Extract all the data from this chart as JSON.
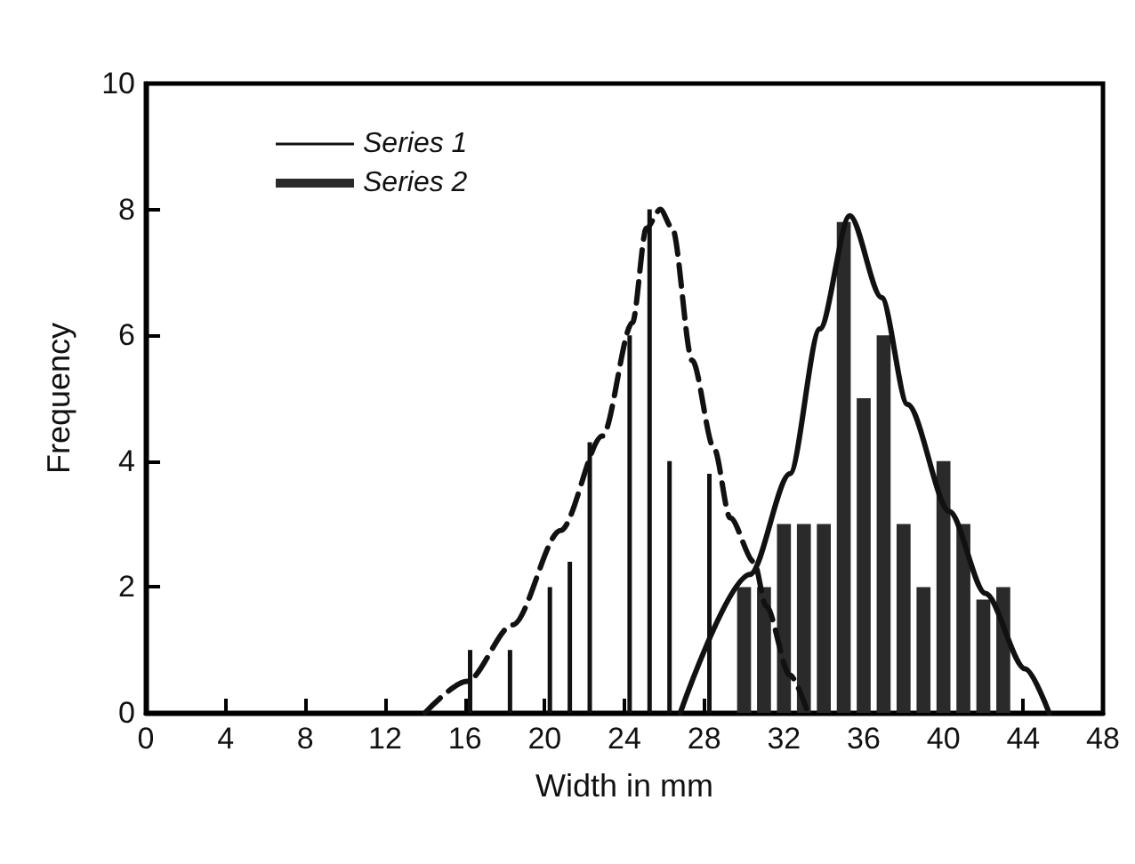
{
  "chart_data": {
    "type": "bar",
    "xlabel": "Width in mm",
    "ylabel": "Frequency",
    "xlim": [
      0,
      48
    ],
    "xticks": [
      0,
      4,
      8,
      12,
      16,
      20,
      24,
      28,
      32,
      36,
      40,
      44,
      48
    ],
    "ylim": [
      0,
      10
    ],
    "yticks": [
      0,
      2,
      4,
      6,
      8,
      10
    ],
    "grid": false,
    "legend": "top left",
    "marker": "none",
    "series": [
      {
        "name": "Series 1",
        "color": "#111111",
        "x": [
          16.5,
          18.5,
          20.5,
          21.5,
          22.5,
          24.5,
          25.5,
          26.5,
          28.5
        ],
        "values": [
          1,
          1,
          2,
          2.4,
          4.3,
          6,
          8,
          4,
          3.8
        ]
      },
      {
        "name": "Series 2",
        "color": "#2a2a2a",
        "x": [
          30,
          31,
          32,
          33,
          34,
          35,
          36,
          37,
          38,
          39,
          40,
          41,
          42,
          43
        ],
        "values": [
          2,
          2,
          3,
          3,
          3,
          7.8,
          5,
          6,
          3,
          2,
          4,
          3,
          1.8,
          2
        ]
      },
      {
        "type": "line",
        "color": "#111111",
        "line_style": "dashed",
        "x": [
          14,
          16.1,
          18.4,
          20.8,
          22.9,
          24.4,
          25.1,
          25.8,
          26.4,
          27.4,
          28.5,
          29.3,
          30.5,
          31.1,
          32.3,
          33.2
        ],
        "values": [
          0,
          0.5,
          1.4,
          2.9,
          4.4,
          6.2,
          7.7,
          8,
          7.7,
          5.6,
          4.2,
          3.1,
          2.4,
          1.7,
          0.6,
          0
        ]
      },
      {
        "type": "line",
        "color": "#111111",
        "line_style": "solid",
        "x": [
          26.8,
          30.3,
          32.3,
          33.8,
          35.3,
          36.9,
          38.2,
          40.3,
          42.1,
          44.1,
          45.3
        ],
        "values": [
          0,
          2.2,
          3.8,
          6.1,
          7.9,
          6.6,
          4.9,
          3.2,
          1.9,
          0.7,
          0
        ]
      }
    ]
  }
}
